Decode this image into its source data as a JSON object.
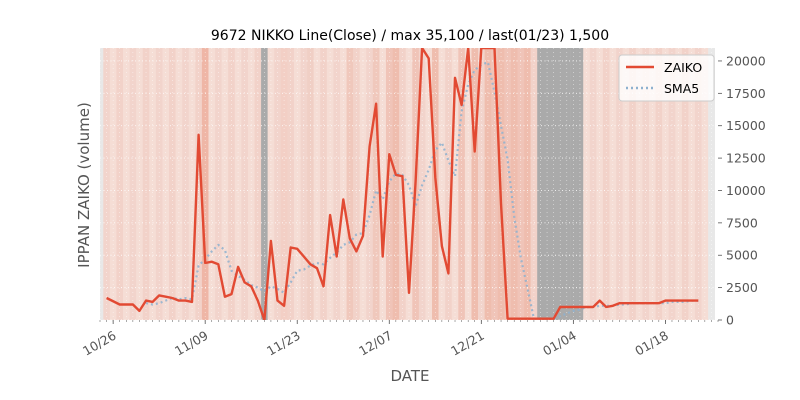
{
  "chart_data": {
    "type": "line",
    "title": "9672 NIKKO Line(Close) / max 35,100 / last(01/23) 1,500",
    "xlabel": "DATE",
    "ylabel": "IPPAN ZAIKO (volume)",
    "ylim": [
      0,
      21000
    ],
    "yticks": [
      0,
      2500,
      5000,
      7500,
      10000,
      12500,
      15000,
      17500,
      20000
    ],
    "ytick_labels": [
      "0",
      "2500",
      "5000",
      "7500",
      "10000",
      "12500",
      "15000",
      "17500",
      "20000"
    ],
    "xlim": [
      "2020-10-24",
      "2021-01-26"
    ],
    "xticks": [
      "2020-10-26",
      "2020-11-09",
      "2020-11-23",
      "2020-12-07",
      "2020-12-21",
      "2021-01-04",
      "2021-01-18"
    ],
    "xtick_labels": [
      "10/26",
      "11/09",
      "11/23",
      "12/07",
      "12/21",
      "01/04",
      "01/18"
    ],
    "grid": true,
    "legend_position": "top-right",
    "x": [
      "2020-10-25",
      "2020-10-27",
      "2020-10-29",
      "2020-10-30",
      "2020-10-31",
      "2020-11-01",
      "2020-11-02",
      "2020-11-03",
      "2020-11-04",
      "2020-11-05",
      "2020-11-06",
      "2020-11-07",
      "2020-11-08",
      "2020-11-09",
      "2020-11-10",
      "2020-11-11",
      "2020-11-12",
      "2020-11-13",
      "2020-11-14",
      "2020-11-15",
      "2020-11-16",
      "2020-11-17",
      "2020-11-18",
      "2020-11-19",
      "2020-11-20",
      "2020-11-21",
      "2020-11-22",
      "2020-11-23",
      "2020-11-24",
      "2020-11-25",
      "2020-11-26",
      "2020-11-27",
      "2020-11-28",
      "2020-11-29",
      "2020-11-30",
      "2020-12-01",
      "2020-12-02",
      "2020-12-03",
      "2020-12-04",
      "2020-12-05",
      "2020-12-06",
      "2020-12-07",
      "2020-12-08",
      "2020-12-09",
      "2020-12-10",
      "2020-12-11",
      "2020-12-12",
      "2020-12-13",
      "2020-12-14",
      "2020-12-15",
      "2020-12-16",
      "2020-12-17",
      "2020-12-18",
      "2020-12-19",
      "2020-12-20",
      "2020-12-21",
      "2020-12-22",
      "2020-12-23",
      "2020-12-24",
      "2020-12-25",
      "2020-12-26",
      "2020-12-27",
      "2020-12-28",
      "2020-12-29",
      "2020-12-30",
      "2020-12-31",
      "2021-01-01",
      "2021-01-02",
      "2021-01-03",
      "2021-01-04",
      "2021-01-05",
      "2021-01-06",
      "2021-01-07",
      "2021-01-08",
      "2021-01-09",
      "2021-01-10",
      "2021-01-11",
      "2021-01-12",
      "2021-01-13",
      "2021-01-14",
      "2021-01-15",
      "2021-01-16",
      "2021-01-17",
      "2021-01-18",
      "2021-01-19",
      "2021-01-20",
      "2021-01-21",
      "2021-01-22",
      "2021-01-23"
    ],
    "series": [
      {
        "name": "ZAIKO",
        "color": "#e24a33",
        "style": "solid",
        "values": [
          1700,
          1200,
          1200,
          700,
          1500,
          1400,
          1900,
          1800,
          1700,
          1500,
          1500,
          1400,
          14300,
          4400,
          4500,
          4300,
          1800,
          2000,
          4100,
          2900,
          2600,
          1500,
          0,
          6100,
          1500,
          1100,
          5600,
          5500,
          4900,
          4300,
          4000,
          2600,
          8100,
          4900,
          9300,
          6300,
          5300,
          6500,
          13400,
          16700,
          4900,
          12800,
          11200,
          11100,
          2100,
          10700,
          21000,
          20200,
          11000,
          5700,
          3600,
          18700,
          16600,
          21000,
          13000,
          21000,
          21000,
          21000,
          9000,
          100,
          100,
          100,
          100,
          100,
          100,
          100,
          100,
          1000,
          1000,
          1000,
          1000,
          1000,
          1000,
          1500,
          1000,
          1100,
          1300,
          1300,
          1300,
          1300,
          1300,
          1300,
          1300,
          1500,
          1500,
          1500,
          1500,
          1500,
          1500
        ]
      },
      {
        "name": "SMA5",
        "color": "#8eb1cf",
        "style": "dotted",
        "values": [
          null,
          null,
          null,
          null,
          1300,
          1200,
          1300,
          1500,
          1700,
          1600,
          1700,
          1600,
          4200,
          4700,
          5300,
          5800,
          5400,
          3800,
          3400,
          3100,
          2700,
          2500,
          2200,
          2600,
          2400,
          2100,
          2900,
          3800,
          3900,
          4200,
          4400,
          4300,
          4800,
          5200,
          5800,
          6000,
          6600,
          6700,
          8100,
          10000,
          9300,
          10700,
          11300,
          11200,
          10400,
          8800,
          10400,
          11600,
          13100,
          13700,
          12300,
          11100,
          16100,
          18200,
          19300,
          19700,
          19900,
          17600,
          15000,
          12400,
          8000,
          4800,
          2500,
          100,
          100,
          100,
          100,
          300,
          500,
          700,
          800,
          1000,
          1000,
          1100,
          1100,
          1100,
          1200,
          1200,
          1300,
          1300,
          1300,
          1300,
          1300,
          1300,
          1400,
          1400,
          1400,
          1500,
          1500
        ]
      }
    ],
    "background_bands": {
      "dates": [
        "2020-10-24",
        "2020-10-25",
        "2020-10-26",
        "2020-10-27",
        "2020-10-28",
        "2020-10-29",
        "2020-10-30",
        "2020-10-31",
        "2020-11-01",
        "2020-11-02",
        "2020-11-03",
        "2020-11-04",
        "2020-11-05",
        "2020-11-06",
        "2020-11-07",
        "2020-11-08",
        "2020-11-09",
        "2020-11-10",
        "2020-11-11",
        "2020-11-12",
        "2020-11-13",
        "2020-11-14",
        "2020-11-15",
        "2020-11-16",
        "2020-11-17",
        "2020-11-18",
        "2020-11-19",
        "2020-11-20",
        "2020-11-21",
        "2020-11-22",
        "2020-11-23",
        "2020-11-24",
        "2020-11-25",
        "2020-11-26",
        "2020-11-27",
        "2020-11-28",
        "2020-11-29",
        "2020-11-30",
        "2020-12-01",
        "2020-12-02",
        "2020-12-03",
        "2020-12-04",
        "2020-12-05",
        "2020-12-06",
        "2020-12-07",
        "2020-12-08",
        "2020-12-09",
        "2020-12-10",
        "2020-12-11",
        "2020-12-12",
        "2020-12-13",
        "2020-12-14",
        "2020-12-15",
        "2020-12-16",
        "2020-12-17",
        "2020-12-18",
        "2020-12-19",
        "2020-12-20",
        "2020-12-21",
        "2020-12-22",
        "2020-12-23",
        "2020-12-24",
        "2020-12-25",
        "2020-12-26",
        "2020-12-27",
        "2020-12-28",
        "2020-12-29",
        "2020-12-30",
        "2020-12-31",
        "2021-01-01",
        "2021-01-02",
        "2021-01-03",
        "2021-01-04",
        "2021-01-05",
        "2021-01-06",
        "2021-01-07",
        "2021-01-08",
        "2021-01-09",
        "2021-01-10",
        "2021-01-11",
        "2021-01-12",
        "2021-01-13",
        "2021-01-14",
        "2021-01-15",
        "2021-01-16",
        "2021-01-17",
        "2021-01-18",
        "2021-01-19",
        "2021-01-20",
        "2021-01-21",
        "2021-01-22",
        "2021-01-23",
        "2021-01-24",
        "2021-01-25"
      ],
      "colors": [
        "#e8e8e8",
        "#f2d4cc",
        "#f5ddd5",
        "#f2d2c9",
        "#f5ddd5",
        "#f2d4cc",
        "#f5ddd5",
        "#f2d2c9",
        "#f5ddd5",
        "#f2d4cc",
        "#f5ddd5",
        "#f2d2c9",
        "#f5ddd5",
        "#f2d4cc",
        "#f5ddd5",
        "#f2d2c9",
        "#efb6a6",
        "#f5ddd5",
        "#f2d4cc",
        "#f5ddd5",
        "#f2d2c9",
        "#f5ddd5",
        "#f2d4cc",
        "#f5ddd5",
        "#f2d2c9",
        "#aaaaaa",
        "#f5ddd5",
        "#f2d4cc",
        "#f3cfc5",
        "#f2d2c9",
        "#f5ddd5",
        "#f2d4cc",
        "#f0cfc5",
        "#f5ddd5",
        "#f2d2c9",
        "#f5ddd5",
        "#f2d4cc",
        "#f5ddd5",
        "#f0c8bc",
        "#f2d2c9",
        "#f5ddd5",
        "#f2d4cc",
        "#f0c8bc",
        "#f5ddd5",
        "#f0c4b8",
        "#efbdae",
        "#f2d2c9",
        "#f5ddd5",
        "#f0c4b8",
        "#f2d4cc",
        "#f5ddd5",
        "#efbdae",
        "#f5ddd5",
        "#f2d2c9",
        "#f5ddd5",
        "#f0c4b8",
        "#f5ddd5",
        "#efbdae",
        "#f2d4cc",
        "#efbdae",
        "#f0c4b8",
        "#efbdae",
        "#f0c4b8",
        "#efbdae",
        "#f0c4b8",
        "#efbdae",
        "#f2d2c9",
        "#aaaaaa",
        "#aaaaaa",
        "#aaaaaa",
        "#aaaaaa",
        "#aaaaaa",
        "#aaaaaa",
        "#aaaaaa",
        "#f5ddd5",
        "#f2d4cc",
        "#f5ddd5",
        "#f2d2c9",
        "#f5ddd5",
        "#f2d4cc",
        "#f5ddd5",
        "#f2d2c9",
        "#f5ddd5",
        "#f2d4cc",
        "#f5ddd5",
        "#f2d2c9",
        "#f5ddd5",
        "#f2d4cc",
        "#f5ddd5",
        "#f2d2c9",
        "#f5ddd5",
        "#f2d4cc",
        "#f5ddd5",
        "#e8e8e8"
      ]
    }
  }
}
